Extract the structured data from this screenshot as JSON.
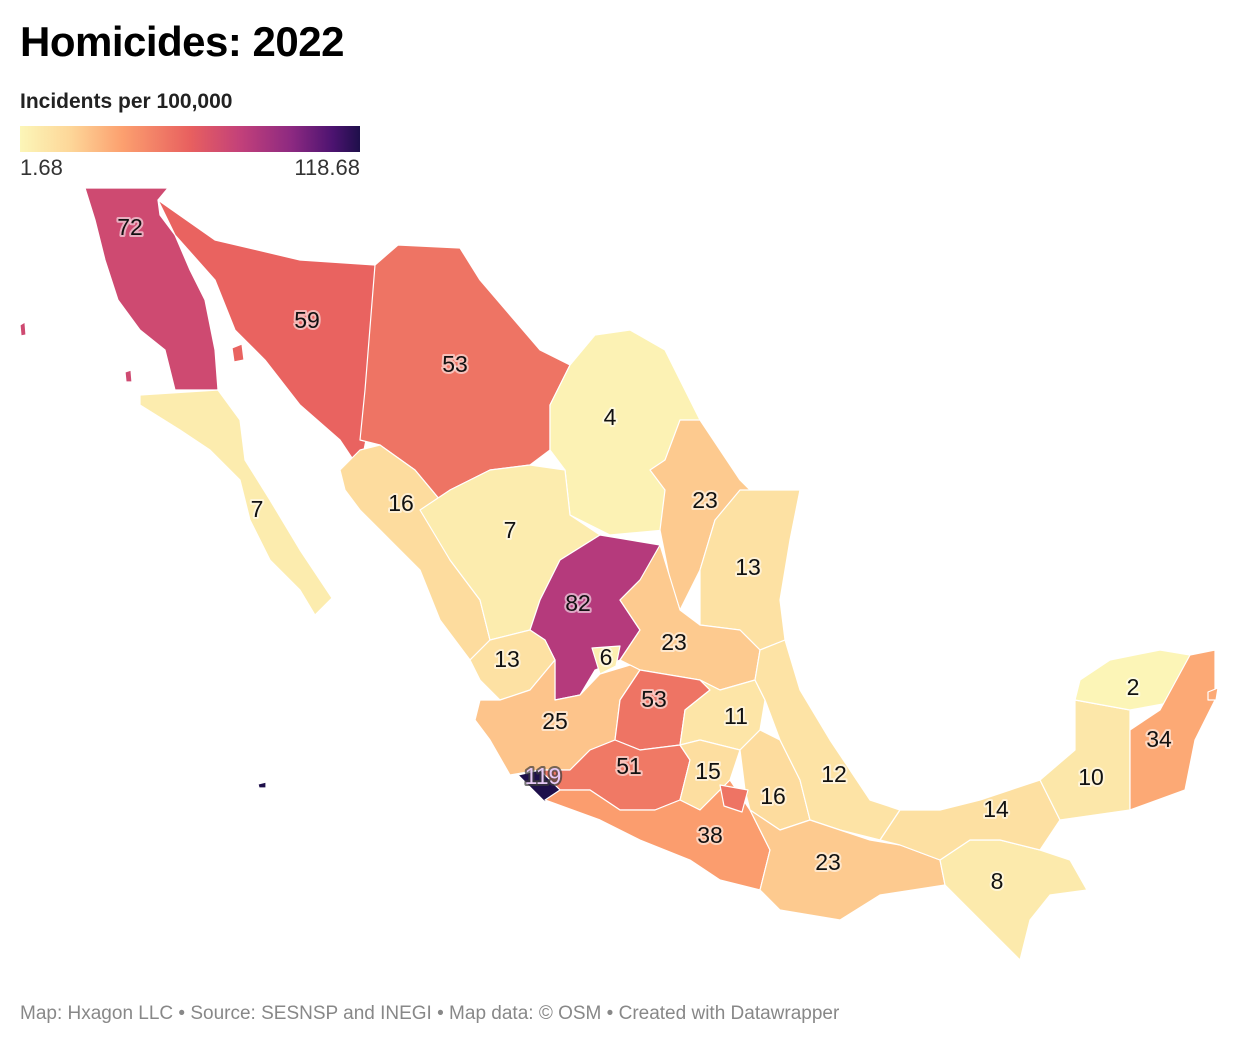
{
  "title": "Homicides: 2022",
  "legend": {
    "title": "Incidents per 100,000",
    "min_label": "1.68",
    "max_label": "118.68",
    "min": 1.68,
    "max": 118.68,
    "colors": [
      "#fcf6b8",
      "#fdd698",
      "#fca06f",
      "#e8605f",
      "#c2407a",
      "#8c2981",
      "#4c1370",
      "#1e0f4a"
    ]
  },
  "regions": [
    {
      "label": "72",
      "value": 72
    },
    {
      "label": "59",
      "value": 59
    },
    {
      "label": "53",
      "value": 53
    },
    {
      "label": "4",
      "value": 4
    },
    {
      "label": "23",
      "value": 23
    },
    {
      "label": "13",
      "value": 13
    },
    {
      "label": "7",
      "value": 7
    },
    {
      "label": "16",
      "value": 16
    },
    {
      "label": "7",
      "value": 7
    },
    {
      "label": "82",
      "value": 82
    },
    {
      "label": "6",
      "value": 6
    },
    {
      "label": "23",
      "value": 23
    },
    {
      "label": "13",
      "value": 13
    },
    {
      "label": "25",
      "value": 25
    },
    {
      "label": "53",
      "value": 53
    },
    {
      "label": "11",
      "value": 11
    },
    {
      "label": "51",
      "value": 51
    },
    {
      "label": "119",
      "value": 119
    },
    {
      "label": "15",
      "value": 15
    },
    {
      "label": "16",
      "value": 16
    },
    {
      "label": "12",
      "value": 12
    },
    {
      "label": "38",
      "value": 38
    },
    {
      "label": "23",
      "value": 23
    },
    {
      "label": "8",
      "value": 8
    },
    {
      "label": "14",
      "value": 14
    },
    {
      "label": "10",
      "value": 10
    },
    {
      "label": "2",
      "value": 2
    },
    {
      "label": "34",
      "value": 34
    }
  ],
  "footer": "Map: Hxagon LLC • Source: SESNSP and INEGI • Map data: © OSM • Created with Datawrapper"
}
